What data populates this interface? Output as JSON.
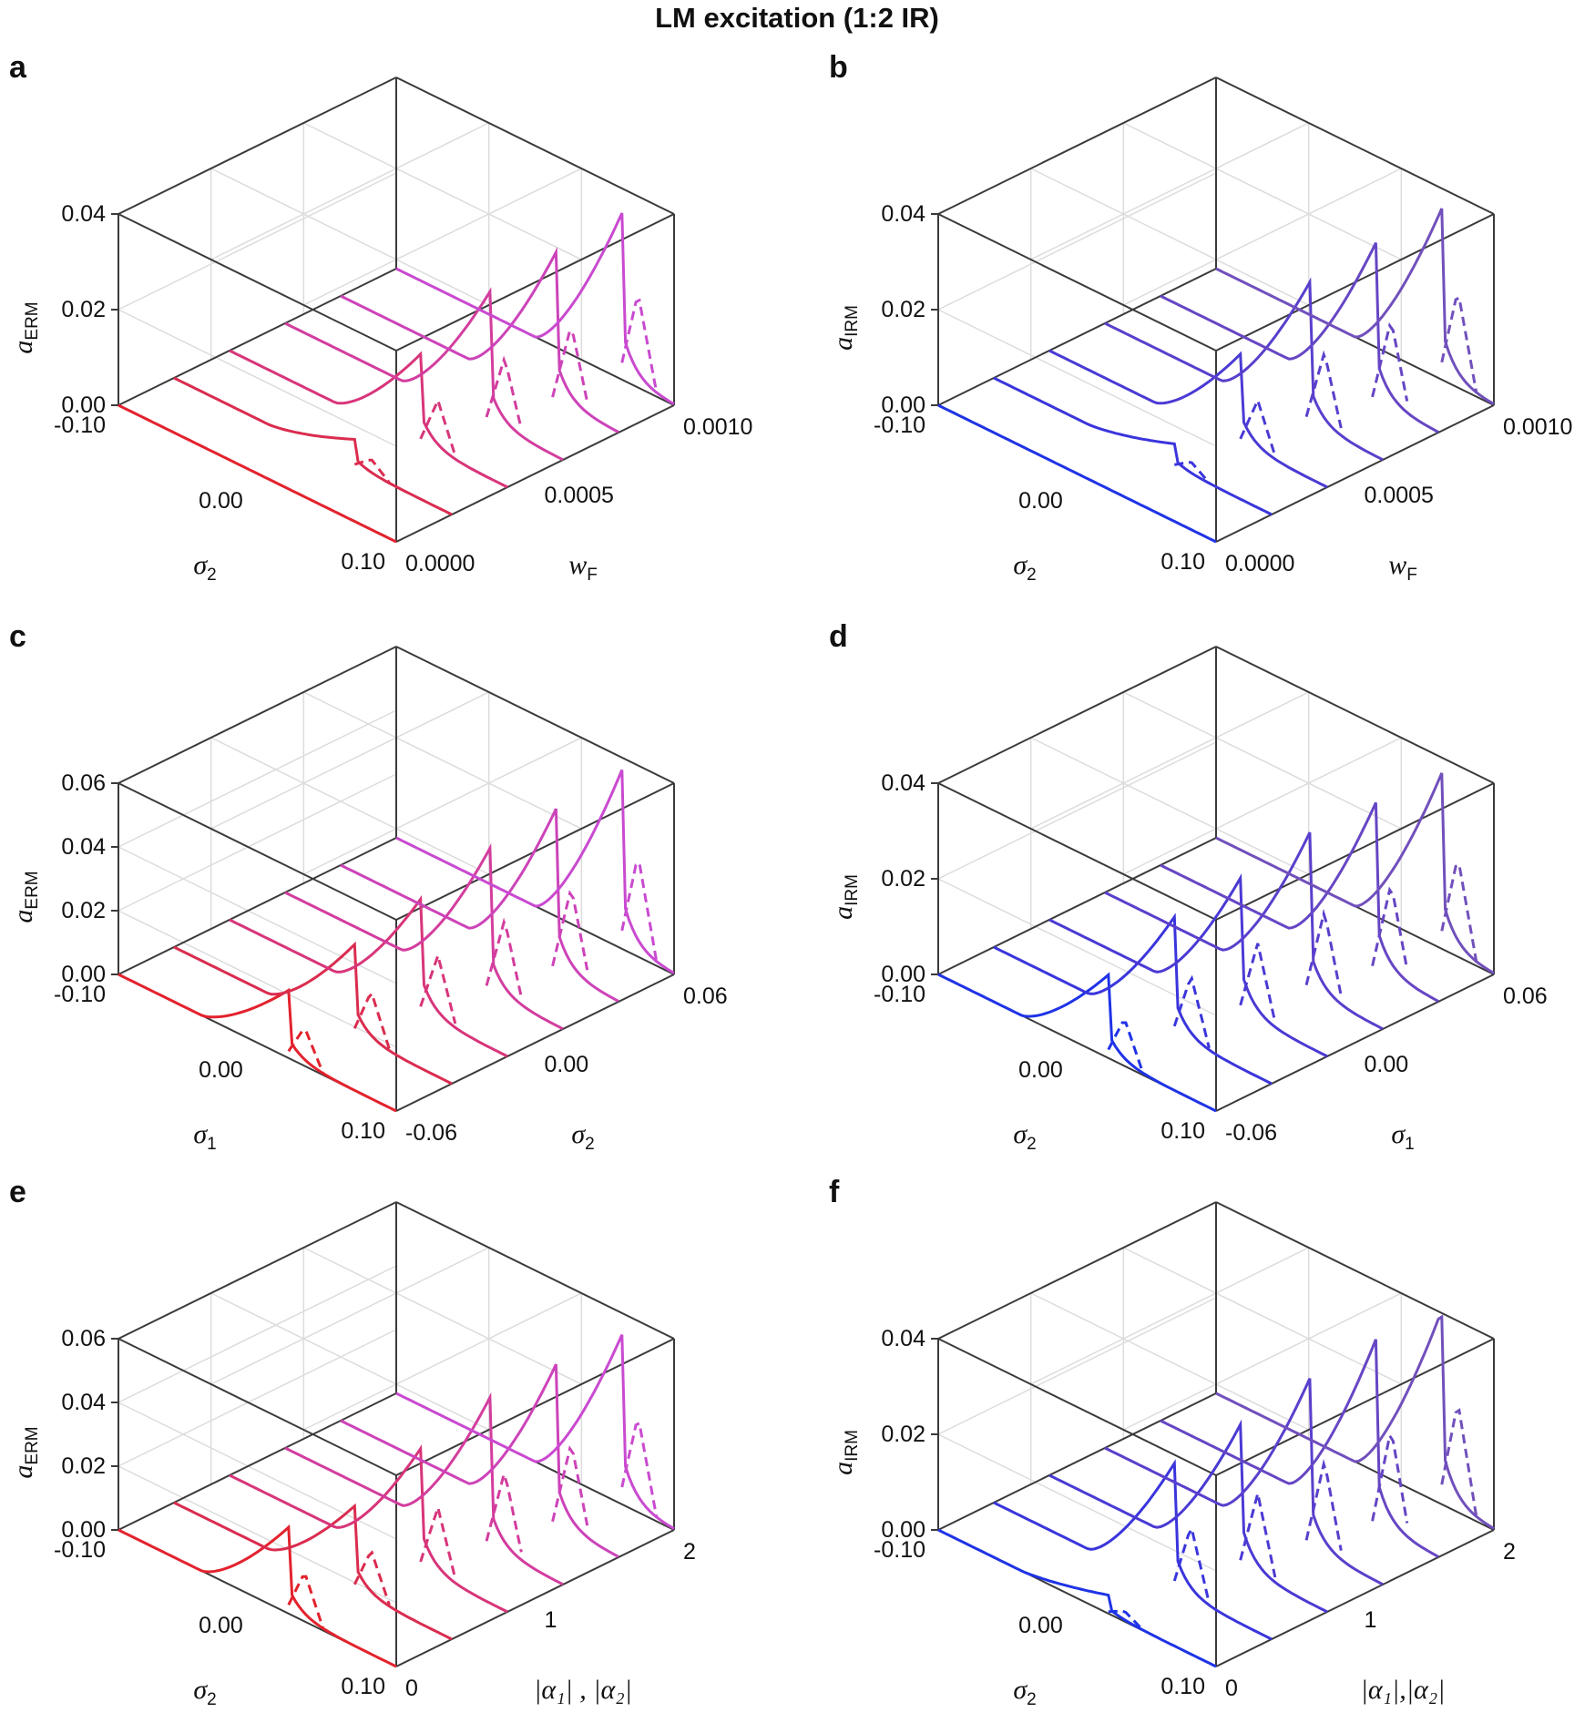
{
  "figure": {
    "title": "LM excitation (1:2 IR)"
  },
  "chart_data": [
    {
      "id": "a",
      "type": "line",
      "panel_label": "a",
      "zlabel": "a",
      "zsub": "ERM",
      "xlabel": "σ",
      "xsub": "2",
      "ylabel": "w",
      "ysub": "F",
      "xticks": [
        "-0.10",
        "0.00",
        "0.10"
      ],
      "yticks": [
        "0.0000",
        "0.0005",
        "0.0010"
      ],
      "zticks": [
        "0.00",
        "0.02",
        "0.04"
      ],
      "xlim": [
        -0.1,
        0.1
      ],
      "ylim": [
        0,
        0.001
      ],
      "zlim": [
        0,
        0.04
      ],
      "series_y": [
        0,
        0.0002,
        0.0004,
        0.0006,
        0.0008,
        0.001
      ],
      "series_peak": [
        0.0,
        0.006,
        0.02,
        0.028,
        0.032,
        0.036
      ],
      "colors": [
        "#e3222d",
        "#da2c4f",
        "#d8357a",
        "#d33d9e",
        "#cd43b9",
        "#c94ad0"
      ]
    },
    {
      "id": "b",
      "type": "line",
      "panel_label": "b",
      "zlabel": "a",
      "zsub": "IRM",
      "xlabel": "σ",
      "xsub": "2",
      "ylabel": "w",
      "ysub": "F",
      "xticks": [
        "-0.10",
        "0.00",
        "0.10"
      ],
      "yticks": [
        "0.0000",
        "0.0005",
        "0.0010"
      ],
      "zticks": [
        "0.00",
        "0.02",
        "0.04"
      ],
      "xlim": [
        -0.1,
        0.1
      ],
      "ylim": [
        0,
        0.001
      ],
      "zlim": [
        0,
        0.04
      ],
      "series_y": [
        0,
        0.0002,
        0.0004,
        0.0006,
        0.0008,
        0.001
      ],
      "series_peak": [
        0.0,
        0.005,
        0.02,
        0.03,
        0.034,
        0.037
      ],
      "colors": [
        "#1f33e6",
        "#3a35dc",
        "#4a3ad4",
        "#5a3fcc",
        "#6646c4",
        "#7150bc"
      ]
    },
    {
      "id": "c",
      "type": "line",
      "panel_label": "c",
      "zlabel": "a",
      "zsub": "ERM",
      "xlabel": "σ",
      "xsub": "1",
      "ylabel": "σ",
      "ysub": "2",
      "xticks": [
        "-0.10",
        "0.00",
        "0.10"
      ],
      "yticks": [
        "-0.06",
        "0.00",
        "0.06"
      ],
      "zticks": [
        "0.00",
        "0.02",
        "0.04",
        "0.06"
      ],
      "xlim": [
        -0.1,
        0.1
      ],
      "ylim": [
        -0.06,
        0.06
      ],
      "zlim": [
        0,
        0.06
      ],
      "series_y": [
        -0.06,
        -0.036,
        -0.012,
        0.012,
        0.036,
        0.06
      ],
      "series_peak": [
        0.022,
        0.03,
        0.038,
        0.046,
        0.052,
        0.058
      ],
      "colors": [
        "#e3222d",
        "#da2c4f",
        "#d8357a",
        "#d33d9e",
        "#cd43b9",
        "#c94ad0"
      ]
    },
    {
      "id": "d",
      "type": "line",
      "panel_label": "d",
      "zlabel": "a",
      "zsub": "IRM",
      "xlabel": "σ",
      "xsub": "2",
      "ylabel": "σ",
      "ysub": "1",
      "xticks": [
        "-0.10",
        "0.00",
        "0.10"
      ],
      "yticks": [
        "-0.06",
        "0.00",
        "0.06"
      ],
      "zticks": [
        "0.00",
        "0.02",
        "0.04"
      ],
      "xlim": [
        -0.1,
        0.1
      ],
      "ylim": [
        -0.06,
        0.06
      ],
      "zlim": [
        0,
        0.04
      ],
      "series_y": [
        -0.06,
        -0.036,
        -0.012,
        0.012,
        0.036,
        0.06
      ],
      "series_peak": [
        0.018,
        0.026,
        0.03,
        0.034,
        0.036,
        0.038
      ],
      "colors": [
        "#1f33e6",
        "#3a35dc",
        "#4a3ad4",
        "#5a3fcc",
        "#6646c4",
        "#7150bc"
      ]
    },
    {
      "id": "e",
      "type": "line",
      "panel_label": "e",
      "zlabel": "a",
      "zsub": "ERM",
      "xlabel": "σ",
      "xsub": "2",
      "ylabel": "|α₁| , |α₂|",
      "xticks": [
        "-0.10",
        "0.00",
        "0.10"
      ],
      "yticks": [
        "0",
        "1",
        "2"
      ],
      "zticks": [
        "0.00",
        "0.02",
        "0.04",
        "0.06"
      ],
      "xlim": [
        -0.1,
        0.1
      ],
      "ylim": [
        0,
        2
      ],
      "zlim": [
        0,
        0.06
      ],
      "series_y": [
        0,
        0.4,
        0.8,
        1.2,
        1.6,
        2.0
      ],
      "series_peak": [
        0.028,
        0.028,
        0.04,
        0.048,
        0.052,
        0.055
      ],
      "colors": [
        "#e3222d",
        "#da2c4f",
        "#d8357a",
        "#d33d9e",
        "#cd43b9",
        "#c94ad0"
      ]
    },
    {
      "id": "f",
      "type": "line",
      "panel_label": "f",
      "zlabel": "a",
      "zsub": "IRM",
      "xlabel": "σ",
      "xsub": "2",
      "ylabel": "|α₁|,|α₂|",
      "xticks": [
        "-0.10",
        "0.00",
        "0.10"
      ],
      "yticks": [
        "0",
        "1",
        "2"
      ],
      "zticks": [
        "0.00",
        "0.02",
        "0.04"
      ],
      "xlim": [
        -0.1,
        0.1
      ],
      "ylim": [
        0,
        2
      ],
      "zlim": [
        0,
        0.04
      ],
      "series_y": [
        0,
        0.4,
        0.8,
        1.2,
        1.6,
        2.0
      ],
      "series_peak": [
        0.004,
        0.028,
        0.032,
        0.036,
        0.04,
        0.042
      ],
      "colors": [
        "#1f33e6",
        "#3a35dc",
        "#4a3ad4",
        "#5a3fcc",
        "#6646c4",
        "#7150bc"
      ]
    }
  ]
}
